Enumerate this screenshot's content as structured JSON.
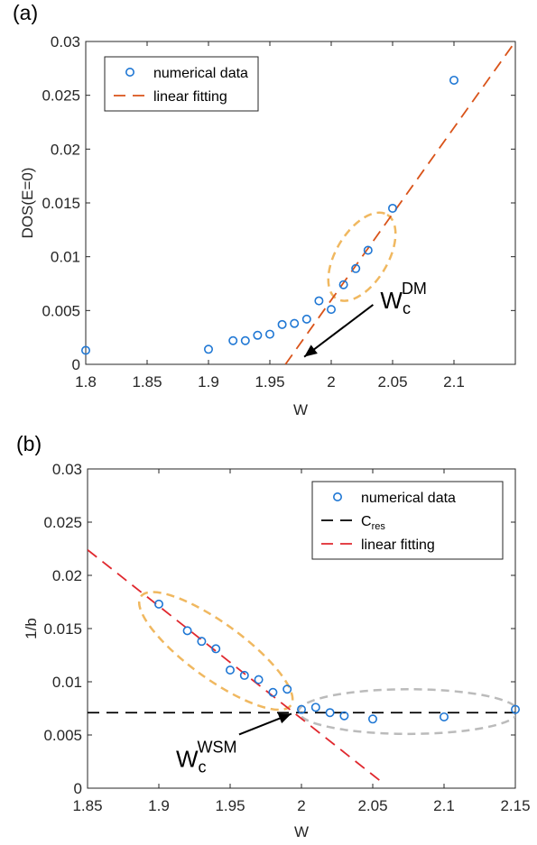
{
  "chart_data": [
    {
      "panel_label": "(a)",
      "type": "scatter",
      "xlabel": "W",
      "ylabel": "DOS(E=0)",
      "xlim": [
        1.8,
        2.15
      ],
      "ylim": [
        0,
        0.03
      ],
      "x_ticks": [
        1.8,
        1.85,
        1.9,
        1.95,
        2.0,
        2.05,
        2.1
      ],
      "x_tick_labels": [
        "1.8",
        "1.85",
        "1.9",
        "1.95",
        "2",
        "2.05",
        "2.1"
      ],
      "y_ticks": [
        0,
        0.005,
        0.01,
        0.015,
        0.02,
        0.025,
        0.03
      ],
      "y_tick_labels": [
        "0",
        "0.005",
        "0.01",
        "0.015",
        "0.02",
        "0.025",
        "0.03"
      ],
      "grid": false,
      "legend_position": "top-left",
      "series": [
        {
          "name": "numerical data",
          "kind": "markers",
          "color": "#1f77d4",
          "x": [
            1.8,
            1.9,
            1.92,
            1.93,
            1.94,
            1.95,
            1.96,
            1.97,
            1.98,
            1.99,
            2.0,
            2.01,
            2.02,
            2.03,
            2.05,
            2.1
          ],
          "y": [
            0.0013,
            0.0014,
            0.0022,
            0.0022,
            0.0027,
            0.0028,
            0.0037,
            0.0038,
            0.0042,
            0.0059,
            0.0051,
            0.0074,
            0.0089,
            0.0106,
            0.0145,
            0.0264
          ]
        },
        {
          "name": "linear fitting",
          "kind": "dashed-line",
          "color": "#d95319",
          "x": [
            1.9627,
            2.15
          ],
          "y": [
            0,
            0.03
          ]
        }
      ],
      "ellipses": [
        {
          "cx": 2.025,
          "cy": 0.01,
          "rx": 0.04,
          "ry": 0.0024,
          "angle_deg": -59,
          "color": "#f0b860"
        }
      ],
      "annotations": [
        {
          "text_main": "W",
          "text_sub": "c",
          "text_sup": "DM",
          "arrow_to": [
            1.978,
            0.0007
          ],
          "label_at": [
            2.04,
            0.0052
          ]
        }
      ]
    },
    {
      "panel_label": "(b)",
      "type": "scatter",
      "xlabel": "W",
      "ylabel": "1/b",
      "xlim": [
        1.85,
        2.15
      ],
      "ylim": [
        0,
        0.03
      ],
      "x_ticks": [
        1.85,
        1.9,
        1.95,
        2.0,
        2.05,
        2.1,
        2.15
      ],
      "x_tick_labels": [
        "1.85",
        "1.9",
        "1.95",
        "2",
        "2.05",
        "2.1",
        "2.15"
      ],
      "y_ticks": [
        0,
        0.005,
        0.01,
        0.015,
        0.02,
        0.025,
        0.03
      ],
      "y_tick_labels": [
        "0",
        "0.005",
        "0.01",
        "0.015",
        "0.02",
        "0.025",
        "0.03"
      ],
      "grid": false,
      "legend_position": "top-right",
      "series": [
        {
          "name": "numerical data",
          "kind": "markers",
          "color": "#1f77d4",
          "x": [
            1.9,
            1.92,
            1.93,
            1.94,
            1.95,
            1.96,
            1.97,
            1.98,
            1.99,
            2.0,
            2.01,
            2.02,
            2.03,
            2.05,
            2.1,
            2.15
          ],
          "y": [
            0.0173,
            0.0148,
            0.0138,
            0.0131,
            0.0111,
            0.0106,
            0.0102,
            0.009,
            0.0093,
            0.0074,
            0.0076,
            0.0071,
            0.0068,
            0.0065,
            0.0067,
            0.0074
          ]
        },
        {
          "name": "C",
          "name_sub": "res",
          "kind": "dashed-line",
          "color": "#000000",
          "x": [
            1.85,
            2.15
          ],
          "y": [
            0.0071,
            0.0071
          ]
        },
        {
          "name": "linear fitting",
          "kind": "dashed-line",
          "color": "#e0282e",
          "x": [
            1.85,
            2.058
          ],
          "y": [
            0.0224,
            0.0004
          ]
        }
      ],
      "ellipses": [
        {
          "cx": 1.94,
          "cy": 0.0129,
          "rx": 0.065,
          "ry": 0.0026,
          "angle_deg": 36,
          "color": "#f0b860"
        },
        {
          "cx": 2.075,
          "cy": 0.0072,
          "rx": 0.077,
          "ry": 0.0021,
          "angle_deg": 0,
          "color": "#bbbbbb"
        }
      ],
      "annotations": [
        {
          "text_main": "W",
          "text_sub": "c",
          "text_sup": "WSM",
          "arrow_to": [
            1.993,
            0.007
          ],
          "label_at": [
            1.912,
            0.002
          ]
        }
      ]
    }
  ]
}
